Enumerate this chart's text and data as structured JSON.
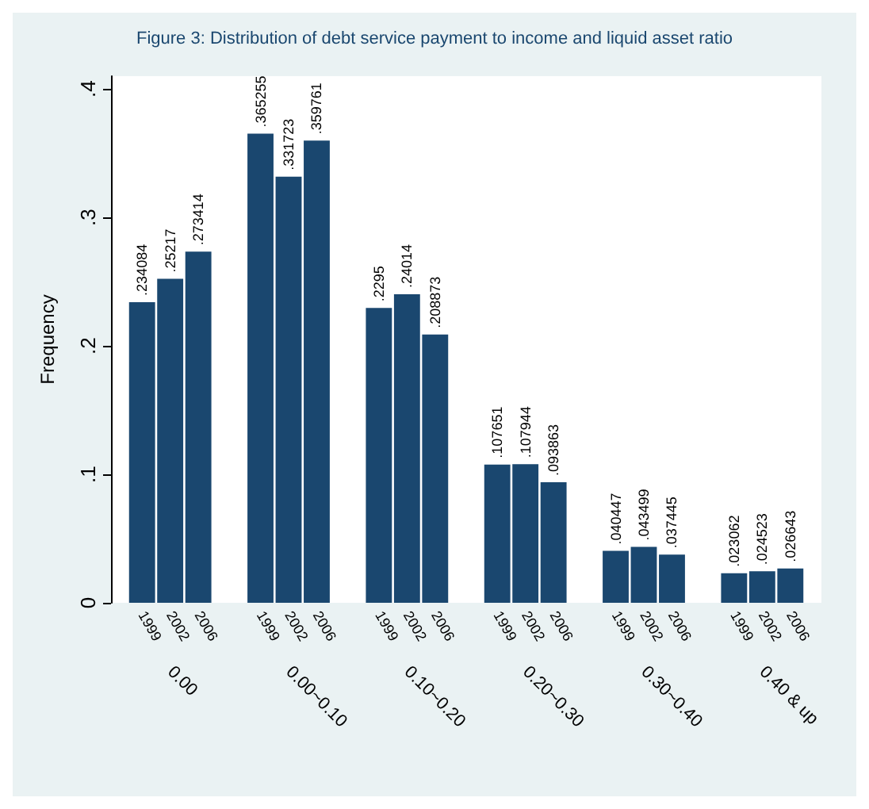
{
  "chart_data": {
    "type": "bar",
    "title": "Figure 3: Distribution of debt service payment to income and liquid asset ratio",
    "ylabel": "Frequency",
    "categories": [
      "0.00",
      "0.00~0.10",
      "0.10~0.20",
      "0.20~0.30",
      "0.30~0.40",
      "0.40 & up"
    ],
    "series": [
      {
        "name": "1999",
        "color": "#1a476f",
        "values": [
          0.234084,
          0.365255,
          0.2295,
          0.107651,
          0.040447,
          0.023062
        ],
        "value_labels": [
          ".234084",
          ".365255",
          ".2295",
          ".107651",
          ".040447",
          ".023062"
        ]
      },
      {
        "name": "2002",
        "color": "#1a476f",
        "values": [
          0.25217,
          0.331723,
          0.24014,
          0.107944,
          0.043499,
          0.024523
        ],
        "value_labels": [
          ".25217",
          ".331723",
          ".24014",
          ".107944",
          ".043499",
          ".024523"
        ]
      },
      {
        "name": "2006",
        "color": "#1a476f",
        "values": [
          0.273414,
          0.359761,
          0.208873,
          0.093863,
          0.037445,
          0.026643
        ],
        "value_labels": [
          ".273414",
          ".359761",
          ".208873",
          ".093863",
          ".037445",
          ".026643"
        ]
      }
    ],
    "ylim": [
      0,
      0.41
    ],
    "yticks": [
      {
        "value": 0,
        "label": "0"
      },
      {
        "value": 0.1,
        "label": ".1"
      },
      {
        "value": 0.2,
        "label": ".2"
      },
      {
        "value": 0.3,
        "label": ".3"
      },
      {
        "value": 0.4,
        "label": ".4"
      }
    ],
    "grid": false,
    "legend": false
  }
}
